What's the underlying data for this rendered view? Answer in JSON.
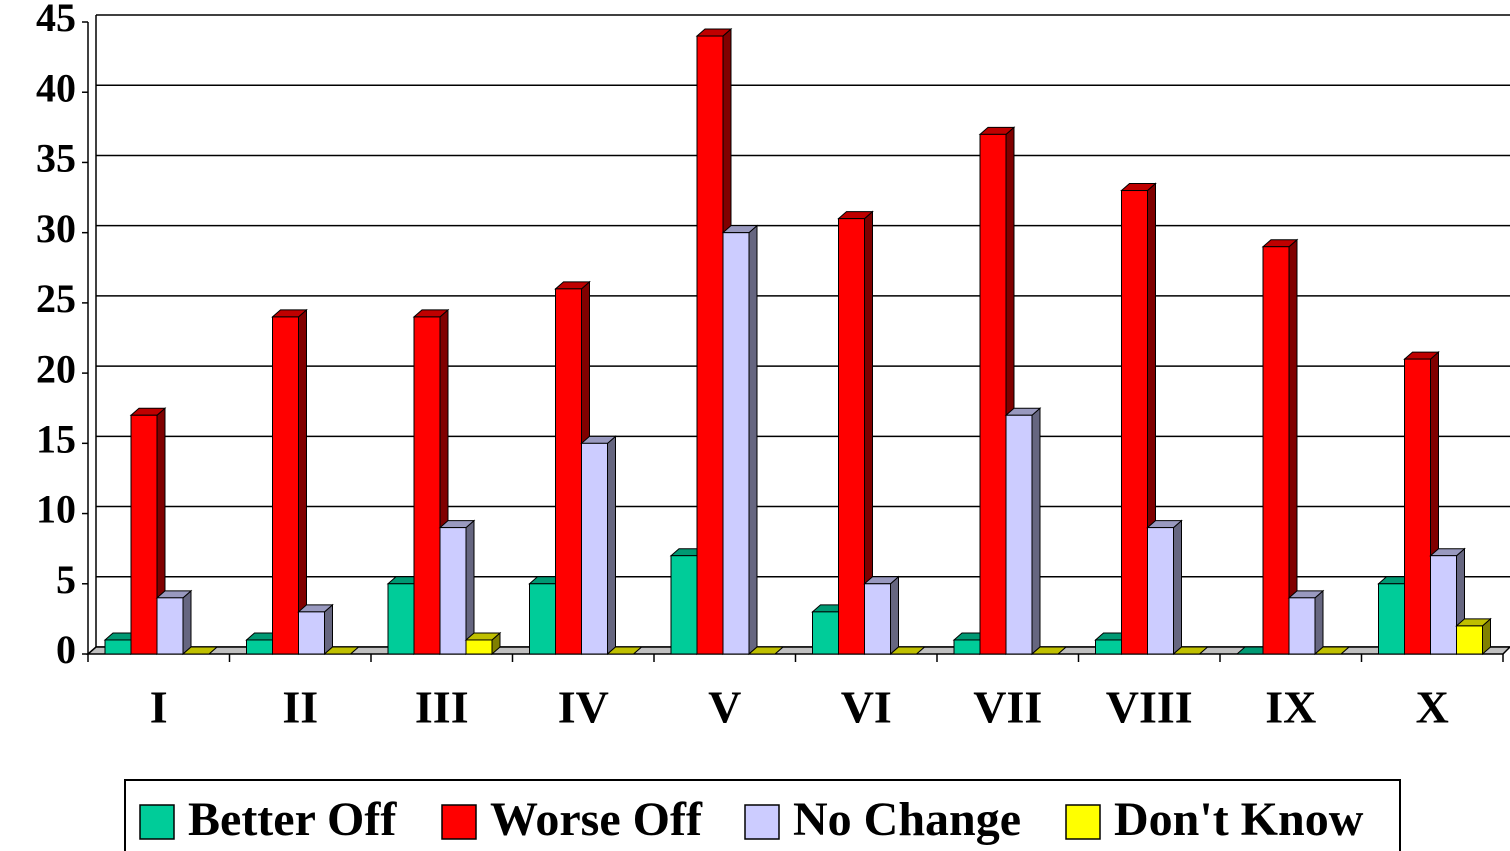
{
  "chart_data": {
    "type": "bar3d",
    "categories": [
      "I",
      "II",
      "III",
      "IV",
      "V",
      "VI",
      "VII",
      "VIII",
      "IX",
      "X"
    ],
    "series": [
      {
        "name": "Better Off",
        "color": "#00cc99",
        "values": [
          1,
          1,
          5,
          5,
          7,
          3,
          1,
          1,
          0,
          5
        ]
      },
      {
        "name": "Worse Off",
        "color": "#ff0000",
        "values": [
          17,
          24,
          24,
          26,
          44,
          31,
          37,
          33,
          29,
          21
        ]
      },
      {
        "name": "No Change",
        "color": "#ccccff",
        "values": [
          4,
          3,
          9,
          15,
          30,
          5,
          17,
          9,
          4,
          7
        ]
      },
      {
        "name": "Don't Know",
        "color": "#ffff00",
        "values": [
          0,
          0,
          1,
          0,
          0,
          0,
          0,
          0,
          0,
          2
        ]
      }
    ],
    "ylim": [
      0,
      45
    ],
    "yticks": [
      0,
      5,
      10,
      15,
      20,
      25,
      30,
      35,
      40,
      45
    ],
    "grid": true,
    "legend": "bottom"
  }
}
